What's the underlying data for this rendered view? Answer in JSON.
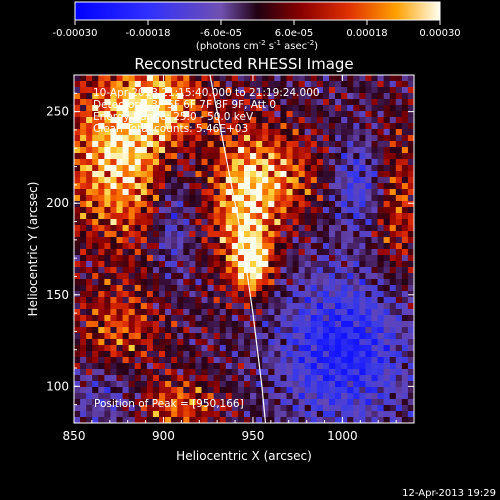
{
  "colorbar": {
    "ticks": [
      "-0.00030",
      "-0.00018",
      "-6.0e-05",
      "6.0e-05",
      "0.00018",
      "0.00030"
    ],
    "tick_values": [
      -0.0003,
      -0.00018,
      -6e-05,
      6e-05,
      0.00018,
      0.0003
    ],
    "range": [
      -0.0003,
      0.0003
    ],
    "units_main": "(photons cm",
    "units_exp1": "-2",
    "units_mid": " s",
    "units_exp2": "-1",
    "units_mid2": " asec",
    "units_exp3": "-2",
    "units_end": ")"
  },
  "footer": {
    "timestamp": "12-Apr-2013 19:29"
  },
  "chart_data": {
    "type": "heatmap",
    "title": "Reconstructed RHESSI Image",
    "xlabel": "Heliocentric X (arcsec)",
    "ylabel": "Heliocentric Y (arcsec)",
    "xlim": [
      850,
      1040
    ],
    "ylim": [
      80,
      270
    ],
    "x_ticks": [
      850,
      900,
      950,
      1000
    ],
    "y_ticks": [
      100,
      150,
      200,
      250
    ],
    "annotations": [
      "10-Apr-2013 21:15:40.000 to 21:19:24.000",
      "Detectors: 3F 5F 6F 7F 8F 9F, Att 0",
      "Energy Range: 25.0 - 50.0 keV",
      "Clean    Total counts: 5.46E+03"
    ],
    "peak_label": "Position of Peak = [950,166]",
    "peak": [
      950,
      166
    ],
    "limb_curve": [
      [
        926,
        270
      ],
      [
        935,
        225
      ],
      [
        944,
        180
      ],
      [
        950,
        140
      ],
      [
        955,
        100
      ],
      [
        957,
        80
      ]
    ],
    "colors": {
      "low": "#1010ff",
      "mid_low": "#6040c0",
      "zero": "#300020",
      "mid_high": "#d02000",
      "high": "#fff8d0"
    }
  }
}
